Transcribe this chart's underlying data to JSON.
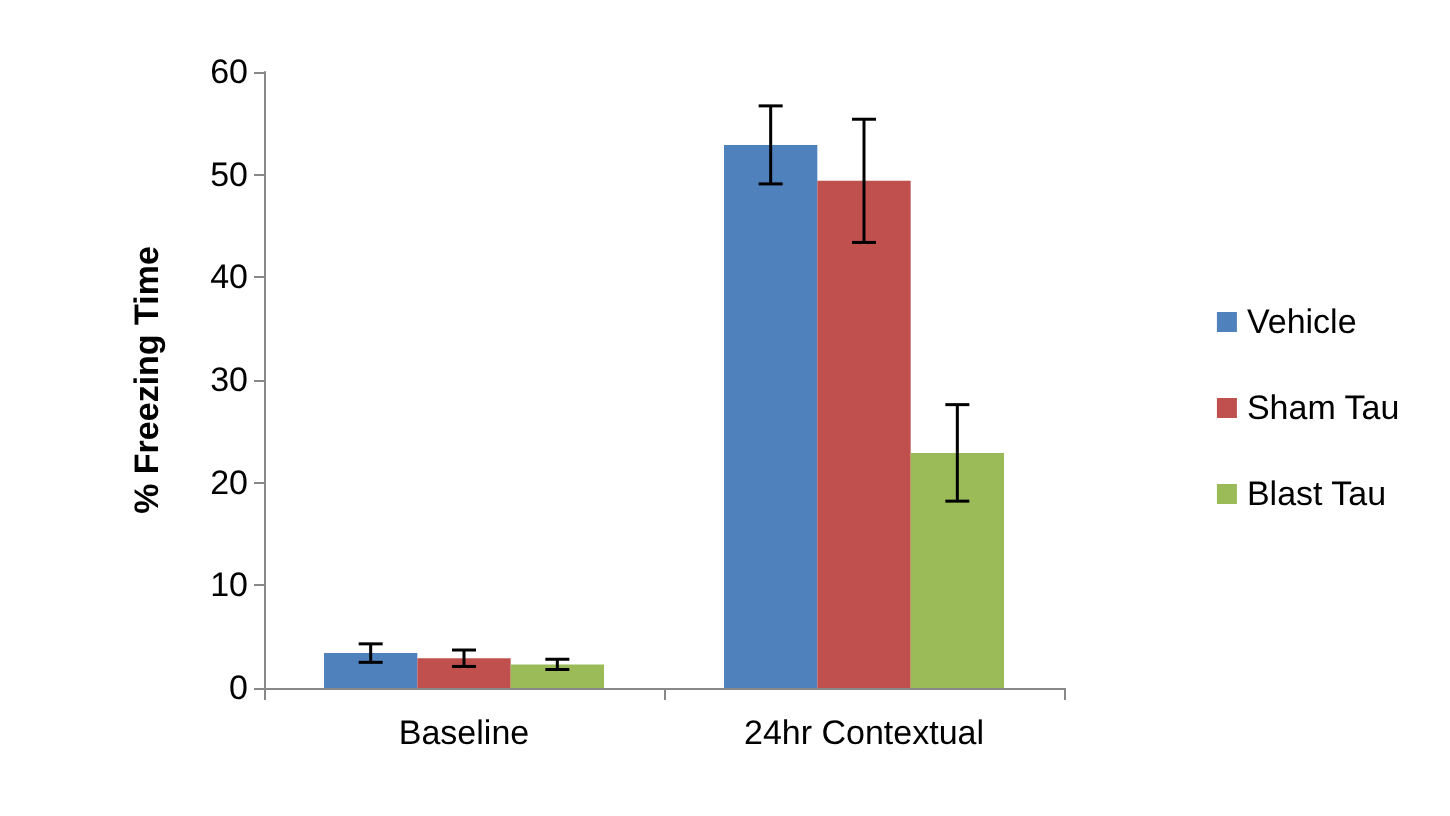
{
  "chart_data": {
    "type": "bar",
    "ylabel": "% Freezing Time",
    "categories": [
      "Baseline",
      "24hr Contextual"
    ],
    "series": [
      {
        "name": "Vehicle",
        "color": "#4f81bd",
        "values": [
          3.4,
          52.9
        ],
        "errors": [
          0.9,
          3.8
        ]
      },
      {
        "name": "Sham Tau",
        "color": "#c0504d",
        "values": [
          2.9,
          49.4
        ],
        "errors": [
          0.8,
          6.0
        ]
      },
      {
        "name": "Blast Tau",
        "color": "#9bbb59",
        "values": [
          2.3,
          22.9
        ],
        "errors": [
          0.5,
          4.7
        ]
      }
    ],
    "ylim": [
      0,
      60
    ],
    "yticks": [
      0,
      10,
      20,
      30,
      40,
      50,
      60
    ],
    "grid": false,
    "legend": "right"
  }
}
